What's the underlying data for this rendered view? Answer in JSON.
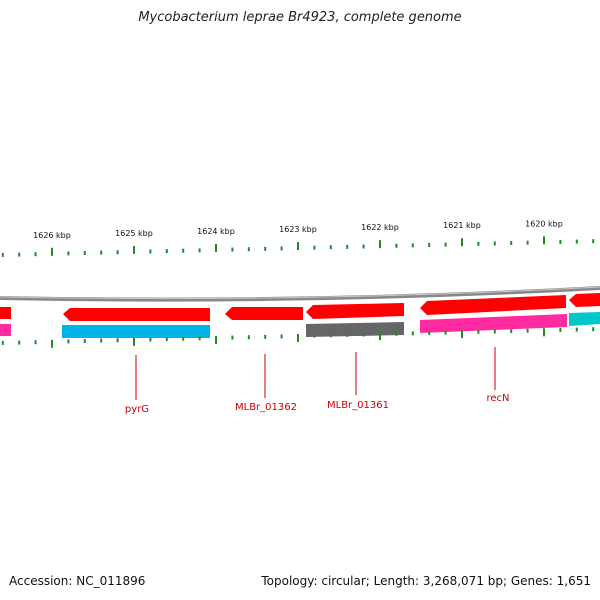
{
  "header": {
    "title": "Mycobacterium leprae Br4923, complete genome"
  },
  "footer": {
    "accession": "Accession: NC_011896",
    "summary": "Topology: circular; Length: 3,268,071 bp; Genes: 1,651"
  },
  "map": {
    "tick_labels": [
      "1626 kbp",
      "1625 kbp",
      "1624 kbp",
      "1623 kbp",
      "1622 kbp",
      "1621 kbp",
      "1620 kbp"
    ],
    "gene_labels": [
      "pyrG",
      "MLBr_01362",
      "MLBr_01361",
      "recN"
    ],
    "colors": {
      "forward_cds": "#ff0000",
      "reverse_blue": "#00b4e6",
      "reverse_gray": "#666666",
      "reverse_pink": "#ff2aa0",
      "reverse_teal": "#00c8c8",
      "backbone": "#888888",
      "ticks": "#228b22",
      "label_lines": "#cc0000"
    }
  }
}
